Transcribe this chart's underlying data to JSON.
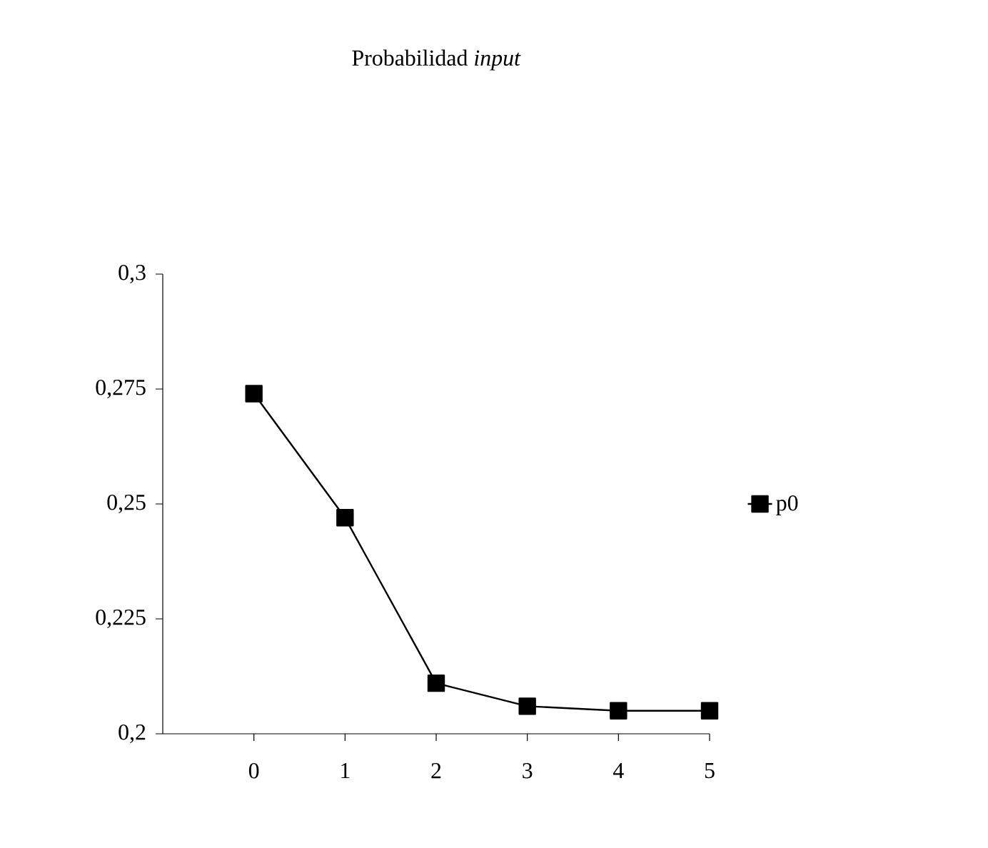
{
  "chart_data": {
    "type": "line",
    "title": "Probabilidad *input*",
    "x": [
      0,
      1,
      2,
      3,
      4,
      5
    ],
    "xlim": [
      -1,
      5
    ],
    "xticks": [
      0,
      1,
      2,
      3,
      4,
      5
    ],
    "ylim": [
      0.2,
      0.3
    ],
    "yticks": [
      {
        "value": 0.2,
        "label": "0,2"
      },
      {
        "value": 0.225,
        "label": "0,225"
      },
      {
        "value": 0.25,
        "label": "0,25"
      },
      {
        "value": 0.275,
        "label": "0,275"
      },
      {
        "value": 0.3,
        "label": "0,3"
      }
    ],
    "series": [
      {
        "name": "p0",
        "color": "#000000",
        "values": [
          0.274,
          0.247,
          0.211,
          0.206,
          0.205,
          0.205
        ]
      }
    ],
    "marker": "square",
    "line_style": "solid",
    "legend": "right",
    "grid": false
  }
}
